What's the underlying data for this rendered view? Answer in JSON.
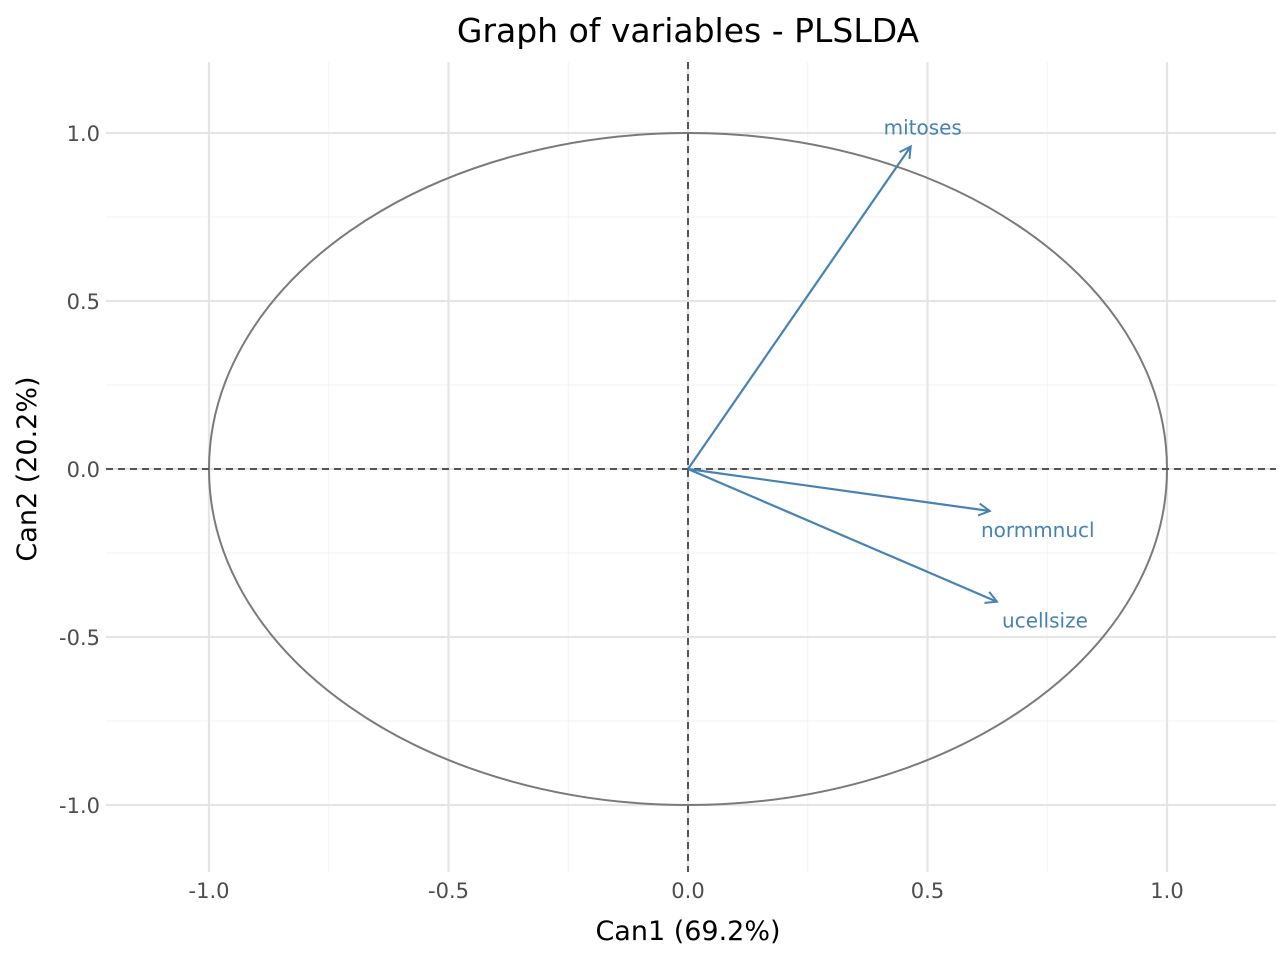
{
  "chart_data": {
    "type": "scatter",
    "title": "Graph of variables - PLSLDA",
    "xlabel": "Can1 (69.2%)",
    "ylabel": "Can2 (20.2%)",
    "xlim": [
      -1.2,
      1.2
    ],
    "ylim": [
      -1.2,
      1.2
    ],
    "x_ticks": [
      -1.0,
      -0.5,
      0.0,
      0.5,
      1.0
    ],
    "y_ticks": [
      -1.0,
      -0.5,
      0.0,
      0.5,
      1.0
    ],
    "x_tick_labels": [
      "-1.0",
      "-0.5",
      "0.0",
      "0.5",
      "1.0"
    ],
    "y_tick_labels": [
      "-1.0",
      "-0.5",
      "0.0",
      "0.5",
      "1.0"
    ],
    "minor_ticks": [
      -0.75,
      -0.25,
      0.25,
      0.75
    ],
    "grid": true,
    "unit_circle": true,
    "reference_lines": {
      "x": 0,
      "y": 0,
      "style": "dashed"
    },
    "arrow_color": "#4682b4",
    "circle_color": "#7a7a7a",
    "variables": [
      {
        "name": "mitoses",
        "x": 0.465,
        "y": 0.96
      },
      {
        "name": "normmnucl",
        "x": 0.63,
        "y": -0.125
      },
      {
        "name": "ucellsize",
        "x": 0.645,
        "y": -0.395
      }
    ]
  }
}
